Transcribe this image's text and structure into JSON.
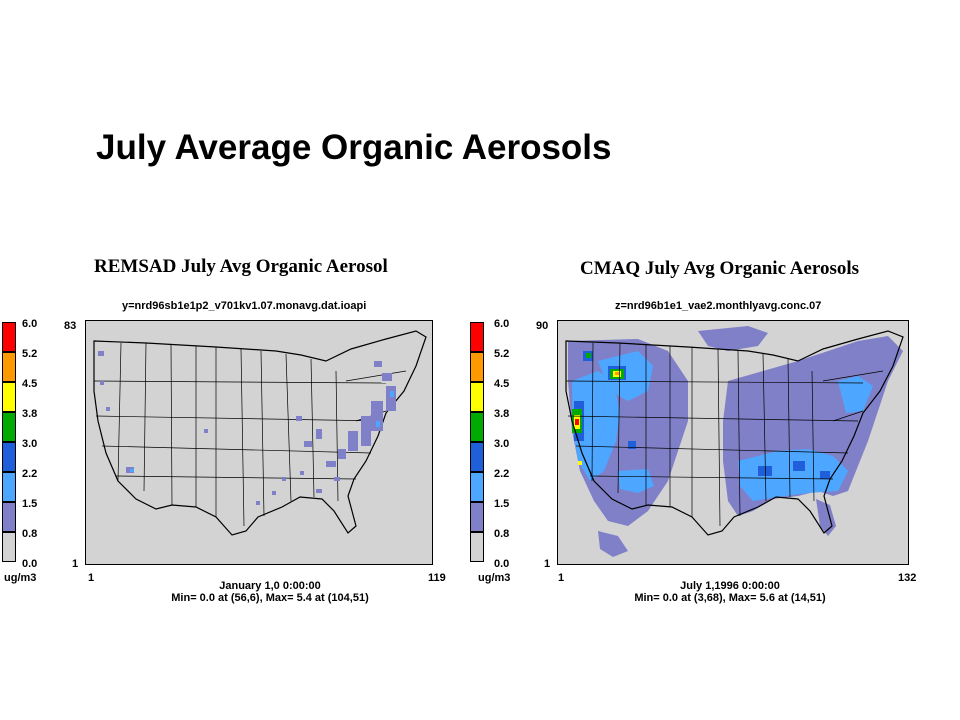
{
  "slide": {
    "title": "July Average Organic Aerosols"
  },
  "legend": {
    "ticks": [
      "6.0",
      "5.2",
      "4.5",
      "3.8",
      "3.0",
      "2.2",
      "1.5",
      "0.8",
      "0.0"
    ],
    "unit": "ug/m3",
    "colors": [
      "#ff0000",
      "#ff9900",
      "#ffff00",
      "#00aa00",
      "#1f5fd9",
      "#4da6ff",
      "#8080c8",
      "#d3d3d3"
    ]
  },
  "maps": [
    {
      "title": "REMSAD July Avg Organic Aerosol",
      "file": "y=nrd96sb1e1p2_v701kv1.07.monavg.dat.ioapi",
      "y_top": "83",
      "y_bottom": "1",
      "x_left": "1",
      "x_right": "119",
      "date": "January 1,0 0:00:00",
      "minmax": "Min= 0.0 at (56,6), Max= 5.4 at (104,51)"
    },
    {
      "title": "CMAQ July Avg Organic Aerosols",
      "file": "z=nrd96b1e1_vae2.monthlyavg.conc.07",
      "y_top": "90",
      "y_bottom": "1",
      "x_left": "1",
      "x_right": "132",
      "date": "July 1,1996 0:00:00",
      "minmax": "Min= 0.0 at (3,68), Max= 5.6 at (14,51)"
    }
  ]
}
